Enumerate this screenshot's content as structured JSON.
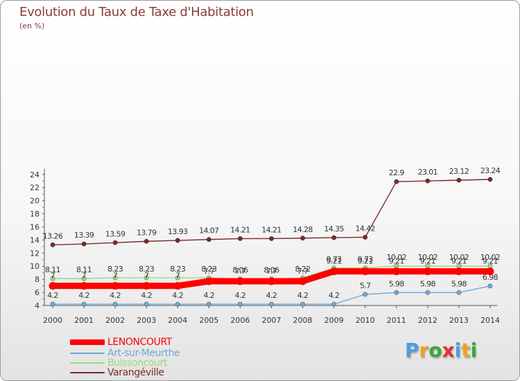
{
  "title": "Evolution du Taux de Taxe d'Habitation",
  "unit_label": "(en %)",
  "brand": {
    "letters": [
      "P",
      "r",
      "o",
      "x",
      "i",
      "t",
      "i"
    ],
    "colors": [
      "#4a9fe0",
      "#f0a020",
      "#3aa83a",
      "#e03030",
      "#4a9fe0",
      "#f0a020",
      "#3aa83a"
    ]
  },
  "chart_data": {
    "type": "line",
    "title": "Evolution du Taux de Taxe d'Habitation",
    "ylabel": "(en %)",
    "xlabel": "",
    "x": [
      "2000",
      "2001",
      "2002",
      "2003",
      "2004",
      "2005",
      "2006",
      "2007",
      "2008",
      "2009",
      "2010",
      "2011",
      "2012",
      "2013",
      "2014"
    ],
    "ylim": [
      4,
      24
    ],
    "yticks": [
      4,
      6,
      8,
      10,
      12,
      14,
      16,
      18,
      20,
      22,
      24
    ],
    "grid": false,
    "legend_position": "bottom-left",
    "series": [
      {
        "name": "LENONCOURT",
        "color": "#ff0000",
        "highlight": true,
        "values": [
          7,
          7,
          7,
          7,
          7,
          7.7,
          7.7,
          7.7,
          7.7,
          9.21,
          9.21,
          9.21,
          9.21,
          9.21,
          9.21
        ],
        "labels": [
          "7",
          "7",
          "7",
          "7",
          "7",
          "7.7",
          "7.7",
          "7.7",
          "7.7",
          "9.21",
          "9.21",
          "9.21",
          "9.21",
          "9.21",
          "9.21"
        ]
      },
      {
        "name": "Art-sur-Meurthe",
        "color": "#6ea8d8",
        "values": [
          4.2,
          4.2,
          4.2,
          4.2,
          4.2,
          4.2,
          4.2,
          4.2,
          4.2,
          4.2,
          5.7,
          5.98,
          5.98,
          5.98,
          6.98
        ],
        "labels": [
          "4.2",
          "4.2",
          "4.2",
          "4.2",
          "4.2",
          "4.2",
          "4.2",
          "4.2",
          "4.2",
          "4.2",
          "5.7",
          "5.98",
          "5.98",
          "5.98",
          "6.98"
        ]
      },
      {
        "name": "Buissoncourt",
        "color": "#9ada7a",
        "values": [
          8.11,
          8.11,
          8.23,
          8.23,
          8.23,
          8.23,
          8.06,
          8.06,
          8.22,
          9.73,
          9.73,
          10.02,
          10.02,
          10.02,
          10.02
        ],
        "labels": [
          "8.11",
          "8.11",
          "8.23",
          "8.23",
          "8.23",
          "8.23",
          "8.06",
          "8.06",
          "8.22",
          "9.73",
          "9.73",
          "10.02",
          "10.02",
          "10.02",
          "10.02"
        ]
      },
      {
        "name": "Varangéville",
        "color": "#7a2a2a",
        "values": [
          13.26,
          13.39,
          13.59,
          13.79,
          13.93,
          14.07,
          14.21,
          14.21,
          14.28,
          14.35,
          14.42,
          22.9,
          23.01,
          23.12,
          23.24
        ],
        "labels": [
          "13.26",
          "13.39",
          "13.59",
          "13.79",
          "13.93",
          "14.07",
          "14.21",
          "14.21",
          "14.28",
          "14.35",
          "14.42",
          "22.9",
          "23.01",
          "23.12",
          "23.24"
        ]
      }
    ]
  }
}
